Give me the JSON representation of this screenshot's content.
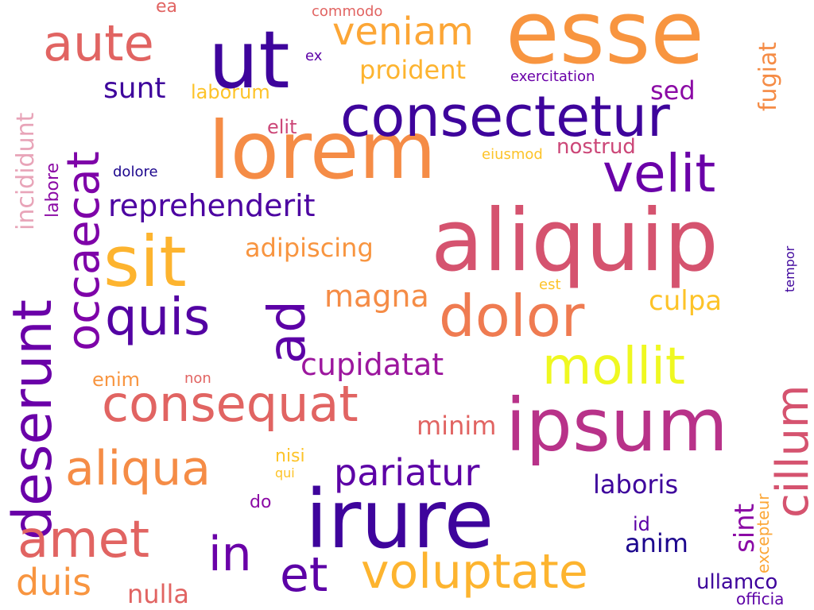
{
  "wordcloud": {
    "words": [
      {
        "text": "esse",
        "color": "#f89540",
        "rot": 0
      },
      {
        "text": "ut",
        "color": "#3e049c",
        "rot": 0
      },
      {
        "text": "aute",
        "color": "#e16462",
        "rot": 0
      },
      {
        "text": "veniam",
        "color": "#fca636",
        "rot": 0
      },
      {
        "text": "lorem",
        "color": "#f58c46",
        "rot": 0
      },
      {
        "text": "consectetur",
        "color": "#3e049c",
        "rot": 0
      },
      {
        "text": "velit",
        "color": "#6a00a8",
        "rot": 0
      },
      {
        "text": "aliquip",
        "color": "#d5536f",
        "rot": 0
      },
      {
        "text": "sit",
        "color": "#fdb42f",
        "rot": 0
      },
      {
        "text": "quis",
        "color": "#5302a3",
        "rot": 0
      },
      {
        "text": "ad",
        "color": "#5c01a6",
        "rot": -90
      },
      {
        "text": "dolor",
        "color": "#ef7b51",
        "rot": 0
      },
      {
        "text": "mollit",
        "color": "#eff821",
        "rot": 0
      },
      {
        "text": "consequat",
        "color": "#e16462",
        "rot": 0
      },
      {
        "text": "ipsum",
        "color": "#b83289",
        "rot": 0
      },
      {
        "text": "cillum",
        "color": "#d5536f",
        "rot": -90
      },
      {
        "text": "aliqua",
        "color": "#f58c46",
        "rot": 0
      },
      {
        "text": "deserunt",
        "color": "#6a00a8",
        "rot": -90
      },
      {
        "text": "occaecat",
        "color": "#7e03a8",
        "rot": -90
      },
      {
        "text": "amet",
        "color": "#e16462",
        "rot": 0
      },
      {
        "text": "in",
        "color": "#6a00a8",
        "rot": 0
      },
      {
        "text": "irure",
        "color": "#3e049c",
        "rot": 0
      },
      {
        "text": "et",
        "color": "#5c01a6",
        "rot": 0
      },
      {
        "text": "voluptate",
        "color": "#fdb42f",
        "rot": 0
      },
      {
        "text": "duis",
        "color": "#f89540",
        "rot": 0
      },
      {
        "text": "pariatur",
        "color": "#5c01a6",
        "rot": 0
      },
      {
        "text": "reprehenderit",
        "color": "#4c02a1",
        "rot": 0
      },
      {
        "text": "incididunt",
        "color": "#e8a4b8",
        "rot": -90
      },
      {
        "text": "sunt",
        "color": "#3e049c",
        "rot": 0
      },
      {
        "text": "laborum",
        "color": "#fdc328",
        "rot": 0
      },
      {
        "text": "proident",
        "color": "#fdb42f",
        "rot": 0
      },
      {
        "text": "sed",
        "color": "#8b0aa5",
        "rot": 0
      },
      {
        "text": "fugiat",
        "color": "#f58c46",
        "rot": -90
      },
      {
        "text": "elit",
        "color": "#cc4778",
        "rot": 0
      },
      {
        "text": "nostrud",
        "color": "#cc4778",
        "rot": 0
      },
      {
        "text": "adipiscing",
        "color": "#f89540",
        "rot": 0
      },
      {
        "text": "magna",
        "color": "#f58c46",
        "rot": 0
      },
      {
        "text": "culpa",
        "color": "#fdc328",
        "rot": 0
      },
      {
        "text": "cupidatat",
        "color": "#9c179e",
        "rot": 0
      },
      {
        "text": "enim",
        "color": "#f89540",
        "rot": 0
      },
      {
        "text": "non",
        "color": "#e16462",
        "rot": 0
      },
      {
        "text": "minim",
        "color": "#e16462",
        "rot": 0
      },
      {
        "text": "nisi",
        "color": "#fdc328",
        "rot": 0
      },
      {
        "text": "qui",
        "color": "#fdc328",
        "rot": 0
      },
      {
        "text": "do",
        "color": "#8b0aa5",
        "rot": 0
      },
      {
        "text": "laboris",
        "color": "#3e049c",
        "rot": 0
      },
      {
        "text": "sint",
        "color": "#8b0aa5",
        "rot": -90
      },
      {
        "text": "id",
        "color": "#5c01a6",
        "rot": 0
      },
      {
        "text": "anim",
        "color": "#1c068d",
        "rot": 0
      },
      {
        "text": "nulla",
        "color": "#e16462",
        "rot": 0
      },
      {
        "text": "ullamco",
        "color": "#3e049c",
        "rot": 0
      },
      {
        "text": "excepteur",
        "color": "#fca636",
        "rot": -90
      },
      {
        "text": "officia",
        "color": "#5c01a6",
        "rot": 0
      },
      {
        "text": "ea",
        "color": "#e16462",
        "rot": 0
      },
      {
        "text": "commodo",
        "color": "#e16462",
        "rot": 0
      },
      {
        "text": "ex",
        "color": "#5c01a6",
        "rot": 0
      },
      {
        "text": "exercitation",
        "color": "#6a00a8",
        "rot": 0
      },
      {
        "text": "eiusmod",
        "color": "#fdc328",
        "rot": 0
      },
      {
        "text": "dolore",
        "color": "#1c068d",
        "rot": 0
      },
      {
        "text": "labore",
        "color": "#8b0aa5",
        "rot": -90
      },
      {
        "text": "est",
        "color": "#fdc328",
        "rot": 0
      },
      {
        "text": "tempor",
        "color": "#3e049c",
        "rot": -90
      }
    ]
  }
}
